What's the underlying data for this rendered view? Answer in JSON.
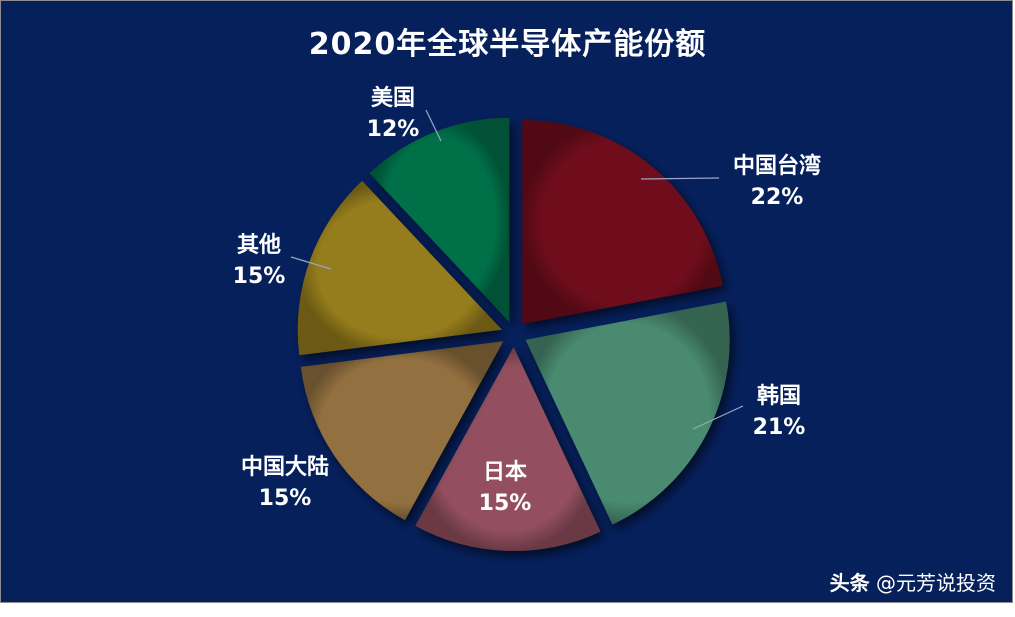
{
  "chart_data": {
    "type": "pie",
    "title": "2020年全球半导体产能份额",
    "slices": [
      {
        "label": "中国台湾",
        "value": 22,
        "value_label": "22%",
        "color": "#6f0b1b"
      },
      {
        "label": "韩国",
        "value": 21,
        "value_label": "21%",
        "color": "#4a8a70"
      },
      {
        "label": "日本",
        "value": 15,
        "value_label": "15%",
        "color": "#93505f"
      },
      {
        "label": "中国大陆",
        "value": 15,
        "value_label": "15%",
        "color": "#93703f"
      },
      {
        "label": "其他",
        "value": 15,
        "value_label": "15%",
        "color": "#957b1d"
      },
      {
        "label": "美国",
        "value": 12,
        "value_label": "12%",
        "color": "#06704a"
      }
    ],
    "legend": "none",
    "labels": "outside with leader lines"
  },
  "colors": {
    "background": "#06205c",
    "text": "#ffffff",
    "leader_line": "#9aa6c4"
  },
  "watermark": {
    "brand": "头条",
    "account": "@元芳说投资"
  }
}
